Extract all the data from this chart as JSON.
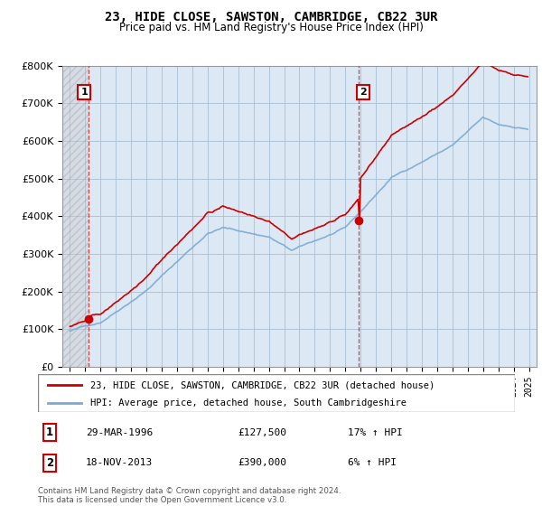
{
  "title": "23, HIDE CLOSE, SAWSTON, CAMBRIDGE, CB22 3UR",
  "subtitle": "Price paid vs. HM Land Registry's House Price Index (HPI)",
  "legend_line1": "23, HIDE CLOSE, SAWSTON, CAMBRIDGE, CB22 3UR (detached house)",
  "legend_line2": "HPI: Average price, detached house, South Cambridgeshire",
  "footer": "Contains HM Land Registry data © Crown copyright and database right 2024.\nThis data is licensed under the Open Government Licence v3.0.",
  "point1_date": "29-MAR-1996",
  "point1_price": "£127,500",
  "point1_hpi": "17% ↑ HPI",
  "point1_year": 1996.23,
  "point1_value": 127500,
  "point2_date": "18-NOV-2013",
  "point2_price": "£390,000",
  "point2_hpi": "6% ↑ HPI",
  "point2_year": 2013.88,
  "point2_value": 390000,
  "red_color": "#cc0000",
  "blue_color": "#7aaad0",
  "hatch_color": "#aaaaaa",
  "background_color": "#ffffff",
  "plot_bg_color": "#dde8f5",
  "grid_color": "#b0c4d8",
  "ylim": [
    0,
    800000
  ],
  "xlim_start": 1994.5,
  "xlim_end": 2025.5
}
